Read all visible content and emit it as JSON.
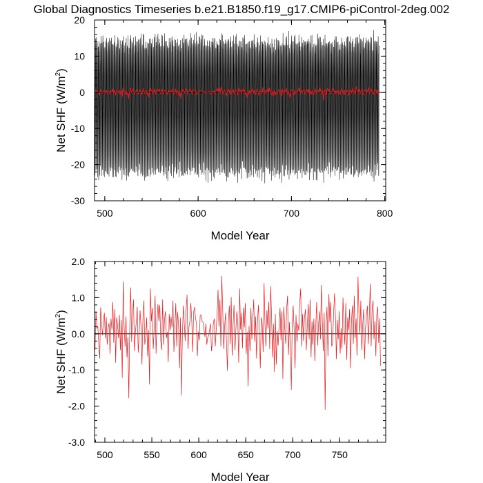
{
  "title": "Global Diagnostics Timeseries b.e21.B1850.f19_g17.CMIP6-piControl-2deg.002",
  "colors": {
    "monthly": "#000000",
    "annual": "#e8191c",
    "zero_line": "#000000",
    "background": "#ffffff"
  },
  "chart_data": [
    {
      "type": "line",
      "name": "monthly-panel",
      "xlabel": "Model Year",
      "ylabel_main": "Net SHF (W/m",
      "ylabel_sup": "2",
      "ylabel_close": ")",
      "xlim": [
        489,
        801
      ],
      "ylim": [
        -30,
        20
      ],
      "xticks": [
        500,
        600,
        700,
        800
      ],
      "yticks": [
        -30,
        -20,
        -10,
        0,
        10,
        20
      ],
      "yticklabels": [
        "-30",
        "-20",
        "-10",
        "0",
        "10",
        "20"
      ],
      "series": [
        {
          "name": "monthly",
          "color": "#000000",
          "x_start": 489.04,
          "dx": 0.0833333,
          "seasonal_cycle": [
            12.6,
            11.2,
            4.0,
            -6.3,
            -16.4,
            -21.9,
            -21.2,
            -14.8,
            -4.9,
            4.7,
            11.0,
            13.7
          ],
          "noise_amplitude": 2.1,
          "ymin": -26.5,
          "ymax": 19.3,
          "note": "monthly global-mean series: seasonal cycle plus annual anomaly plus noise, 312 model years"
        },
        {
          "name": "annual-mean",
          "color": "#e8191c",
          "source": "annual"
        }
      ]
    },
    {
      "type": "line",
      "name": "annual-panel",
      "xlabel": "Model Year",
      "ylabel_main": "Net SHF (W/m",
      "ylabel_sup": "2",
      "ylabel_close": ")",
      "xlim": [
        489,
        799
      ],
      "ylim": [
        -3.0,
        2.0
      ],
      "xticks": [
        500,
        550,
        600,
        650,
        700,
        750
      ],
      "yticks": [
        -3.0,
        -2.0,
        -1.0,
        0.0,
        1.0,
        2.0
      ],
      "yticklabels": [
        "-3.0",
        "-2.0",
        "-1.0",
        "0.0",
        "1.0",
        "2.0"
      ],
      "series": [
        {
          "name": "annual-mean",
          "color": "#e8191c",
          "x_start": 489.5,
          "dx": 1,
          "values": [
            -0.45,
            0.62,
            0.15,
            0.21,
            -0.28,
            -0.68,
            0.73,
            0.28,
            -0.04,
            0.35,
            0.58,
            -0.12,
            0.46,
            -0.3,
            0.15,
            0.3,
            -0.55,
            0.42,
            0.12,
            0.88,
            -0.25,
            0.68,
            -0.8,
            0.45,
            0.25,
            -0.12,
            0.52,
            -0.45,
            0.38,
            -1.22,
            1.45,
            0.22,
            -0.35,
            0.48,
            -0.65,
            -0.1,
            -1.78,
            0.18,
            1.28,
            -0.22,
            0.55,
            0.95,
            -0.48,
            0.05,
            0.35,
            0.75,
            -0.52,
            -0.05,
            0.65,
            0.2,
            -0.85,
            0.4,
            0.92,
            -0.3,
            -0.08,
            0.45,
            -0.62,
            0.1,
            -1.4,
            1.25,
            0.35,
            0.72,
            -0.42,
            0.15,
            1.05,
            -0.55,
            0.3,
            0.82,
            0.35,
            0.8,
            -0.2,
            -0.45,
            0.95,
            -0.3,
            0.4,
            0.62,
            -0.12,
            0.05,
            -0.78,
            0.55,
            0.1,
            0.48,
            0.18,
            0.92,
            -0.5,
            0.15,
            0.85,
            -0.35,
            0.6,
            0.22,
            -0.95,
            0.45,
            -1.7,
            -0.1,
            0.78,
            0.32,
            -0.2,
            0.66,
            1.08,
            -0.42,
            0.18,
            0.34,
            0.85,
            0.38,
            -0.5,
            0.6,
            0.74,
            0.45,
            0.28,
            -0.62,
            0.06,
            -0.18,
            0.52,
            0.52,
            0.35,
            0.32,
            0.15,
            -0.08,
            0.28,
            -0.3,
            -0.1,
            -0.05,
            0.12,
            0.28,
            -0.48,
            -0.22,
            0.3,
            0.42,
            -0.35,
            0.1,
            0.55,
            1.22,
            0.2,
            0.95,
            -0.35,
            1.6,
            0.65,
            -0.42,
            0.2,
            0.58,
            -0.25,
            -1.02,
            0.35,
            0.78,
            -0.28,
            1.02,
            -0.6,
            0.25,
            0.8,
            -0.45,
            0.12,
            0.62,
            0.35,
            -0.8,
            1.25,
            0.12,
            0.58,
            -0.4,
            0.72,
            0.18,
            0.85,
            -0.55,
            0.05,
            -1.45,
            0.22,
            -0.48,
            0.72,
            -0.15,
            0.42,
            0.95,
            -0.22,
            0.48,
            -0.68,
            0.35,
            0.8,
            0.05,
            -0.95,
            0.45,
            0.3,
            -0.5,
            1.4,
            0.25,
            -0.35,
            0.65,
            0.15,
            0.88,
            -0.42,
            1.32,
            0.48,
            -0.65,
            0.28,
            -1.05,
            0.55,
            -0.85,
            0.08,
            -0.32,
            0.22,
            0.72,
            -0.18,
            0.62,
            -1.25,
            0.75,
            0.15,
            -0.28,
            0.68,
            1.05,
            -0.58,
            0.32,
            -0.42,
            -1.55,
            0.35,
            0.78,
            0.12,
            -0.95,
            0.52,
            -0.22,
            0.28,
            0.08,
            0.88,
            1.25,
            -0.35,
            0.55,
            -0.2,
            0.45,
            0.68,
            -0.45,
            0.2,
            0.82,
            -0.15,
            0.95,
            -0.65,
            0.35,
            -0.3,
            0.42,
            -0.75,
            0.18,
            0.88,
            -0.32,
            0.25,
            0.62,
            -0.15,
            1.35,
            0.35,
            -0.48,
            0.58,
            -2.1,
            0.22,
            0.75,
            -0.62,
            1.1,
            0.32,
            0.88,
            -0.35,
            -0.25,
            0.55,
            1.12,
            0.48,
            -0.7,
            0.38,
            -0.15,
            0.62,
            -0.55,
            0.15,
            -0.4,
            1.0,
            0.25,
            -0.3,
            0.85,
            -0.72,
            0.45,
            0.1,
            0.68,
            -0.95,
            0.32,
            0.78,
            -0.28,
            1.05,
            -0.12,
            0.42,
            -0.6,
            1.58,
            0.55,
            0.02,
            0.92,
            -0.45,
            0.25,
            0.68,
            -0.7,
            0.15,
            0.52,
            0.78,
            -0.28,
            0.45,
            1.38,
            -0.35,
            0.65,
            0.92,
            -0.15,
            0.35,
            -0.62,
            0.55,
            0.75,
            -0.25,
            0.42,
            -0.88
          ]
        }
      ]
    }
  ]
}
